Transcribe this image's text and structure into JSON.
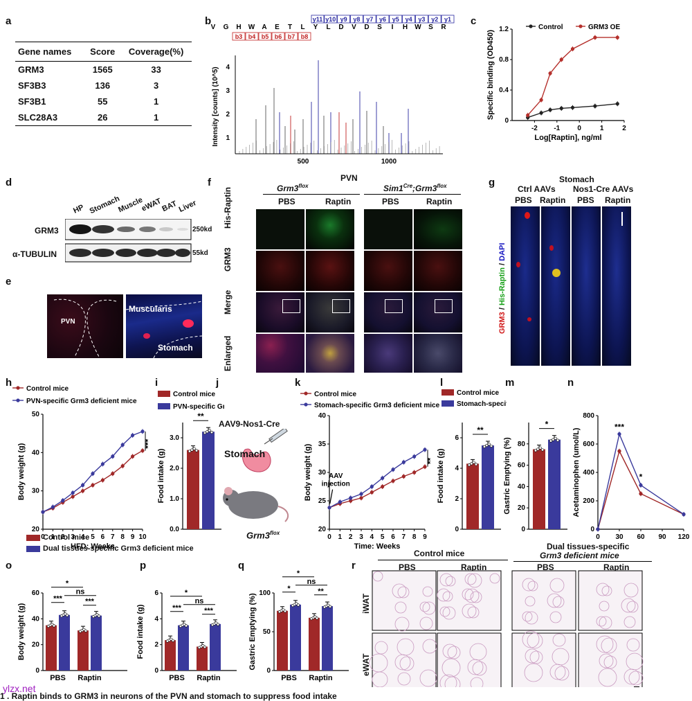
{
  "panels": {
    "a": "a",
    "b": "b",
    "c": "c",
    "d": "d",
    "e": "e",
    "f": "f",
    "g": "g",
    "h": "h",
    "i": "i",
    "j": "j",
    "k": "k",
    "l": "l",
    "m": "m",
    "n": "n",
    "o": "o",
    "p": "p",
    "q": "q",
    "r": "r"
  },
  "table_a": {
    "headers": [
      "Gene names",
      "Score",
      "Coverage(%)"
    ],
    "rows": [
      [
        "GRM3",
        "1565",
        "33"
      ],
      [
        "SF3B3",
        "136",
        "3"
      ],
      [
        "SF3B1",
        "55",
        "1"
      ],
      [
        "SLC28A3",
        "26",
        "1"
      ]
    ]
  },
  "panel_b": {
    "ylabel": "Intensity [counts] (10^5)",
    "sequence": [
      "V",
      "G",
      "H",
      "W",
      "A",
      "E",
      "T",
      "L",
      "Y",
      "L",
      "D",
      "V",
      "D",
      "S",
      "I",
      "H",
      "W",
      "S",
      "R"
    ],
    "y_ions": [
      "y11",
      "y10",
      "y9",
      "y8",
      "y7",
      "y6",
      "y5",
      "y4",
      "y3",
      "y2",
      "y1"
    ],
    "b_ions": [
      "b3",
      "b4",
      "b5",
      "b6",
      "b7",
      "b8"
    ],
    "yticks": [
      "1",
      "2",
      "3",
      "4"
    ],
    "xticks": [
      "500",
      "1000"
    ]
  },
  "panel_d": {
    "lanes": [
      "HP",
      "Stomach",
      "Muscle",
      "eWAT",
      "BAT",
      "Liver"
    ],
    "rows": [
      "GRM3",
      "α-TUBULIN"
    ],
    "sizes": [
      "250kd",
      "55kd"
    ]
  },
  "panel_e": {
    "left_label": "PVN",
    "right_label1": "Muscularis",
    "right_label2": "Stomach"
  },
  "panel_f": {
    "title": "PVN",
    "group1": "Grm3",
    "group1_sup": "flox",
    "group2_a": "Sim1",
    "group2_a_sup": "Cre",
    "group2_b": ";Grm3",
    "group2_b_sup": "flox",
    "cols": [
      "PBS",
      "Raptin",
      "PBS",
      "Raptin"
    ],
    "rows": [
      "His-Raptin",
      "GRM3",
      "Merge",
      "Enlarged"
    ]
  },
  "panel_g": {
    "title": "Stomach",
    "groups": [
      "Ctrl AAVs",
      "Nos1-Cre AAVs"
    ],
    "cols": [
      "PBS",
      "Raptin",
      "PBS",
      "Raptin"
    ],
    "side": [
      "GRM3",
      " / ",
      "His-Raptin",
      " / ",
      "DAPI"
    ]
  },
  "panel_j": {
    "title": "AAV9-Nos1-Cre",
    "organ": "Stomach",
    "mouse": "Grm3",
    "mouse_sup": "flox"
  },
  "panel_r": {
    "group1": "Control mice",
    "group2_line1": "Dual tissues-specific",
    "group2_line2": "Grm3 deficient mice",
    "cols": [
      "PBS",
      "Raptin",
      "PBS",
      "Raptin"
    ],
    "rows": [
      "iWAT",
      "eWAT"
    ]
  },
  "legends": {
    "control": "Control mice",
    "pvn": "PVN-specific Grm3 deficient mice",
    "stomach": "Stomach-specific Grm3 deficient mice",
    "dual": "Dual tissues-specific Grm3 deficient mice"
  },
  "chart_data": [
    {
      "panel": "c",
      "type": "line",
      "xlabel": "Log[Raptin], ng/ml",
      "ylabel": "Specific binding (OD450)",
      "xlim": [
        -3,
        2
      ],
      "ylim": [
        0,
        1.2
      ],
      "xticks": [
        -2,
        -1,
        0,
        1,
        2
      ],
      "yticks": [
        0,
        0.4,
        0.8,
        1.2
      ],
      "legend": "top-center",
      "series": [
        {
          "name": "Control",
          "color": "#222222",
          "x": [
            -2.3,
            -1.7,
            -1.3,
            -0.8,
            -0.3,
            0.7,
            1.7
          ],
          "y": [
            0.04,
            0.1,
            0.14,
            0.16,
            0.17,
            0.19,
            0.22
          ]
        },
        {
          "name": "GRM3 OE",
          "color": "#b5302c",
          "x": [
            -2.3,
            -1.7,
            -1.3,
            -0.8,
            -0.3,
            0.7,
            1.7
          ],
          "y": [
            0.07,
            0.27,
            0.62,
            0.8,
            0.94,
            1.09,
            1.09
          ]
        }
      ]
    },
    {
      "panel": "h",
      "type": "line",
      "xlabel": "HFD: Weeks",
      "ylabel": "Body weight (g)",
      "xlim": [
        0,
        10
      ],
      "ylim": [
        20,
        50
      ],
      "xticks": [
        0,
        1,
        2,
        3,
        4,
        5,
        6,
        7,
        8,
        9,
        10
      ],
      "yticks": [
        20,
        30,
        40,
        50
      ],
      "significance": "***",
      "series": [
        {
          "name": "Control mice",
          "color": "#a02828",
          "x": [
            0,
            1,
            2,
            3,
            4,
            5,
            6,
            7,
            8,
            9,
            10
          ],
          "y": [
            24.5,
            25.5,
            27,
            28.5,
            30,
            31.5,
            32.8,
            34.5,
            36.5,
            39,
            40.5
          ]
        },
        {
          "name": "PVN-specific Grm3 deficient mice",
          "color": "#3a3a9c",
          "x": [
            0,
            1,
            2,
            3,
            4,
            5,
            6,
            7,
            8,
            9,
            10
          ],
          "y": [
            24.5,
            25.8,
            27.5,
            29.5,
            31.5,
            34.5,
            37,
            39,
            42,
            44.5,
            45.5
          ]
        }
      ]
    },
    {
      "panel": "i",
      "type": "bar",
      "ylabel": "Food intake (g)",
      "ylim": [
        0,
        3.5
      ],
      "yticks": [
        0.0,
        1.0,
        2.0,
        3.0
      ],
      "significance": "**",
      "series": [
        {
          "name": "Control mice",
          "color": "#a02828",
          "values": [
            2.6
          ]
        },
        {
          "name": "PVN-specific Grm3 deficient mice",
          "color": "#3a3a9c",
          "values": [
            3.2
          ]
        }
      ]
    },
    {
      "panel": "k",
      "type": "line",
      "xlabel": "Time: Weeks",
      "ylabel": "Body weight (g)",
      "xlim": [
        0,
        9
      ],
      "ylim": [
        20,
        40
      ],
      "xticks": [
        0,
        1,
        2,
        3,
        4,
        5,
        6,
        7,
        8,
        9
      ],
      "yticks": [
        20,
        25,
        30,
        35,
        40
      ],
      "annotation": "AAV injection",
      "significance": "**",
      "series": [
        {
          "name": "Control mice",
          "color": "#a02828",
          "x": [
            0,
            1,
            2,
            3,
            4,
            5,
            6,
            7,
            8,
            9
          ],
          "y": [
            23.8,
            24.5,
            25,
            25.5,
            26.5,
            27.5,
            28.5,
            29.3,
            30,
            31
          ]
        },
        {
          "name": "Stomach-specific Grm3 deficient mice",
          "color": "#3a3a9c",
          "x": [
            0,
            1,
            2,
            3,
            4,
            5,
            6,
            7,
            8,
            9
          ],
          "y": [
            23.8,
            24.8,
            25.5,
            26.2,
            27.5,
            29,
            30.5,
            31.8,
            32.8,
            34
          ]
        }
      ]
    },
    {
      "panel": "l",
      "type": "bar",
      "ylabel": "Food intake (g)",
      "ylim": [
        0,
        7
      ],
      "yticks": [
        0,
        2,
        4,
        6
      ],
      "significance": "**",
      "series": [
        {
          "name": "Control mice",
          "color": "#a02828",
          "values": [
            4.3
          ]
        },
        {
          "name": "Stomach-specific Grm3 deficient mice",
          "color": "#3a3a9c",
          "values": [
            5.5
          ]
        }
      ]
    },
    {
      "panel": "m",
      "type": "bar",
      "ylabel": "Gastric Emptying (%)",
      "ylim": [
        0,
        100
      ],
      "yticks": [
        0,
        20,
        40,
        60,
        80
      ],
      "significance": "*",
      "series": [
        {
          "name": "Control mice",
          "color": "#a02828",
          "values": [
            75
          ]
        },
        {
          "name": "Stomach-specific Grm3 deficient mice",
          "color": "#3a3a9c",
          "values": [
            84
          ]
        }
      ]
    },
    {
      "panel": "n",
      "type": "line",
      "ylabel": "Acetaminophen (umol/L)",
      "xlim": [
        0,
        120
      ],
      "ylim": [
        0,
        800
      ],
      "xticks": [
        0,
        30,
        60,
        90,
        120
      ],
      "yticks": [
        0,
        200,
        400,
        600,
        800
      ],
      "annotations": [
        "***",
        "*"
      ],
      "series": [
        {
          "name": "Control mice",
          "color": "#a02828",
          "x": [
            0,
            30,
            60,
            120
          ],
          "y": [
            0,
            550,
            250,
            105
          ]
        },
        {
          "name": "Stomach-specific Grm3 deficient mice",
          "color": "#3a3a9c",
          "x": [
            0,
            30,
            60,
            120
          ],
          "y": [
            0,
            670,
            310,
            105
          ]
        }
      ]
    },
    {
      "panel": "o",
      "type": "bar",
      "categories": [
        "PBS",
        "Raptin"
      ],
      "ylabel": "Body weight (g)",
      "ylim": [
        0,
        60
      ],
      "yticks": [
        0,
        20,
        40,
        60
      ],
      "significance": [
        "*",
        "***",
        "ns",
        "***"
      ],
      "series": [
        {
          "name": "Control mice",
          "color": "#a02828",
          "values": [
            35,
            31
          ]
        },
        {
          "name": "Dual tissues-specific Grm3 deficient mice",
          "color": "#3a3a9c",
          "values": [
            43,
            42.5
          ]
        }
      ]
    },
    {
      "panel": "p",
      "type": "bar",
      "categories": [
        "PBS",
        "Raptin"
      ],
      "ylabel": "Food intake (g)",
      "ylim": [
        0,
        6
      ],
      "yticks": [
        0,
        2,
        4,
        6
      ],
      "significance": [
        "*",
        "***",
        "ns",
        "***"
      ],
      "series": [
        {
          "name": "Control mice",
          "color": "#a02828",
          "values": [
            2.35,
            1.85
          ]
        },
        {
          "name": "Dual tissues-specific Grm3 deficient mice",
          "color": "#3a3a9c",
          "values": [
            3.5,
            3.6
          ]
        }
      ]
    },
    {
      "panel": "q",
      "type": "bar",
      "categories": [
        "PBS",
        "Raptin"
      ],
      "ylabel": "Gastric Emptying (%)",
      "ylim": [
        0,
        100
      ],
      "yticks": [
        0,
        50,
        100
      ],
      "significance": [
        "*",
        "*",
        "ns",
        "**"
      ],
      "series": [
        {
          "name": "Control mice",
          "color": "#a02828",
          "values": [
            77,
            68
          ]
        },
        {
          "name": "Dual tissues-specific Grm3 deficient mice",
          "color": "#3a3a9c",
          "values": [
            85,
            83
          ]
        }
      ]
    }
  ],
  "watermark": "ylzx.net",
  "caption": "1 . Raptin binds to GRM3 in neurons of the PVN and stomach to suppress food intake"
}
